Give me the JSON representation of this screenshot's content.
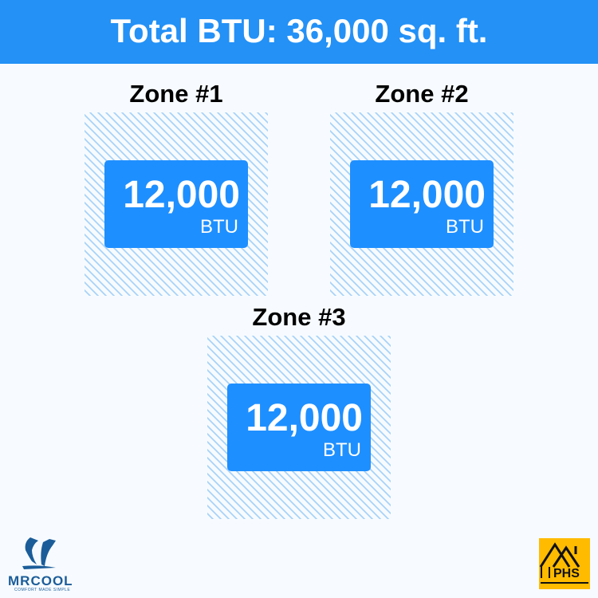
{
  "header": {
    "title": "Total BTU: 36,000 sq. ft."
  },
  "zones": [
    {
      "label": "Zone #1",
      "value": "12,000",
      "unit": "BTU"
    },
    {
      "label": "Zone #2",
      "value": "12,000",
      "unit": "BTU"
    },
    {
      "label": "Zone #3",
      "value": "12,000",
      "unit": "BTU"
    }
  ],
  "logos": {
    "left": {
      "name": "MRCOOL",
      "tagline": "COMFORT MADE SIMPLE"
    },
    "right": {
      "name": "PHS"
    }
  },
  "colors": {
    "accent": "#1e8fff",
    "header": "#2391f6",
    "phs": "#ffbb00"
  }
}
